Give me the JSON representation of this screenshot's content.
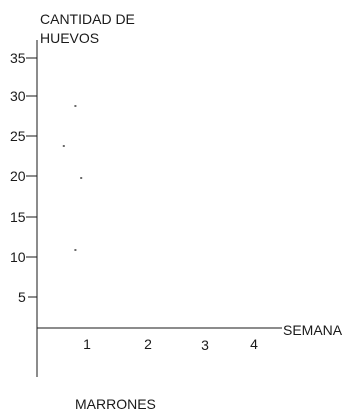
{
  "chart_data": {
    "type": "scatter",
    "title": "",
    "ylabel": [
      "CANTIDAD DE",
      "HUEVOS"
    ],
    "xlabel": "SEMANA",
    "caption": "MARRONES",
    "y_ticks": [
      "35",
      "30",
      "25",
      "20",
      "15",
      "10",
      "5"
    ],
    "x_ticks": [
      "1",
      "2",
      "3",
      "4"
    ],
    "ylim": [
      0,
      35
    ],
    "points": [
      {
        "x": 0.8,
        "y": 29
      },
      {
        "x": 0.6,
        "y": 24
      },
      {
        "x": 0.9,
        "y": 20
      },
      {
        "x": 0.8,
        "y": 11
      }
    ],
    "grid": false,
    "legend": "none"
  }
}
